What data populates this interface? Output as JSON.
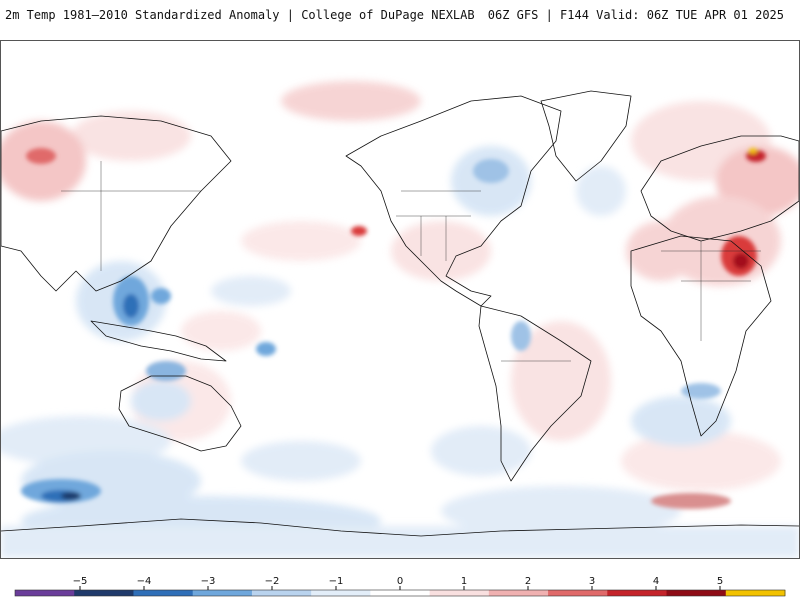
{
  "header": {
    "title": "2m Temp 1981–2010 Standardized Anomaly | College of DuPage NEXLAB",
    "run_info": "06Z GFS | F144 Valid: 06Z TUE APR 01 2025"
  },
  "map": {
    "product": "2m Temperature Standardized Anomaly",
    "model": "GFS",
    "projection": "global cylindrical",
    "anomaly_colors": {
      "-5": "#6a3d9a",
      "-4": "#1f3a6b",
      "-3": "#2f6fb8",
      "-2": "#6fa7dc",
      "-1": "#cfe0f2",
      "0": "#ffffff",
      "1": "#f6d0d0",
      "2": "#ea9a9a",
      "3": "#d93a3a",
      "4": "#a3101a",
      "5": "#f2c200"
    }
  },
  "colorbar": {
    "ticks": [
      {
        "label": "−5"
      },
      {
        "label": "−4"
      },
      {
        "label": "−3"
      },
      {
        "label": "−2"
      },
      {
        "label": "−1"
      },
      {
        "label": "0"
      },
      {
        "label": "1"
      },
      {
        "label": "2"
      },
      {
        "label": "3"
      },
      {
        "label": "4"
      },
      {
        "label": "5"
      }
    ],
    "segment_colors": [
      "#6a3d9a",
      "#1f3a6b",
      "#2f6fb8",
      "#6fa7dc",
      "#b9d3ee",
      "#e3eef9",
      "#ffffff",
      "#f9e0e0",
      "#f0b1b1",
      "#e06a6a",
      "#c4242a",
      "#8e0c16",
      "#f2c200"
    ]
  }
}
